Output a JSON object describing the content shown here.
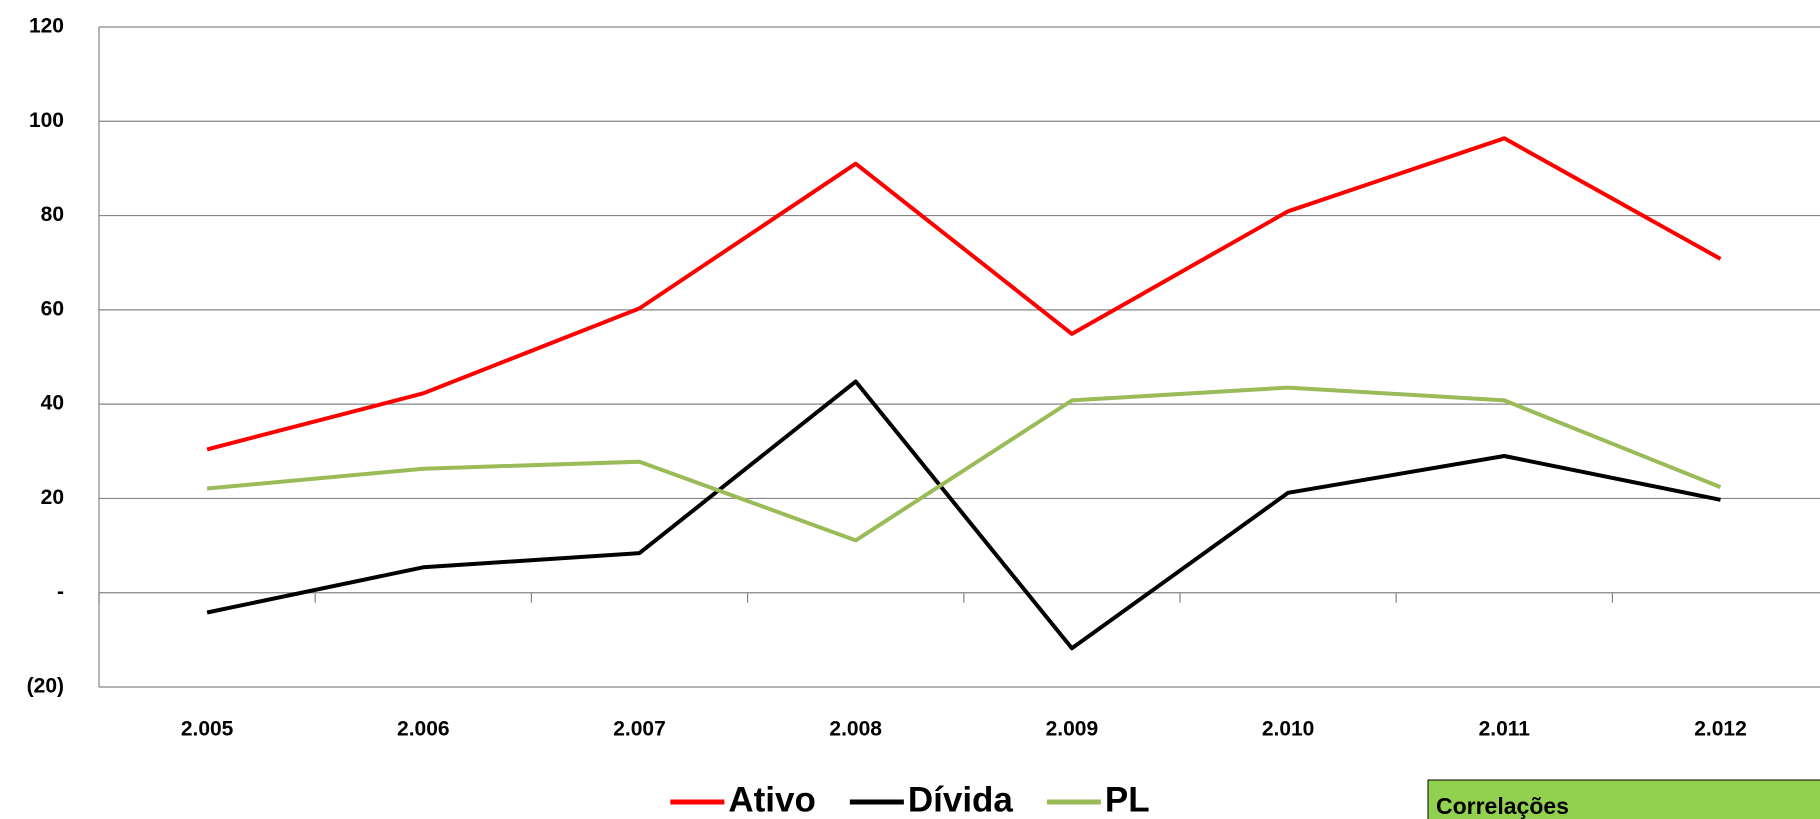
{
  "chart_data": {
    "type": "line",
    "categories": [
      "2.005",
      "2.006",
      "2.007",
      "2.008",
      "2.009",
      "2.010",
      "2.011",
      "2.012"
    ],
    "series": [
      {
        "name": "Ativo",
        "color": "#ff0000",
        "values": [
          30.4,
          42.3,
          60.3,
          91.0,
          54.9,
          80.9,
          96.4,
          70.8
        ]
      },
      {
        "name": "Dívida",
        "color": "#000000",
        "values": [
          -4.2,
          5.4,
          8.4,
          44.8,
          -11.8,
          21.2,
          29.0,
          19.7
        ]
      },
      {
        "name": "PL",
        "color": "#9bbb59",
        "values": [
          22.1,
          26.3,
          27.8,
          11.1,
          40.8,
          43.5,
          40.8,
          22.4
        ]
      }
    ],
    "ylim": [
      -20,
      120
    ],
    "yticks": [
      {
        "value": -20,
        "label": "(20)"
      },
      {
        "value": 0,
        "label": "-"
      },
      20,
      40,
      60,
      80,
      100,
      120
    ],
    "grid": true,
    "legend": "bottom",
    "annotation": "Correlações"
  }
}
